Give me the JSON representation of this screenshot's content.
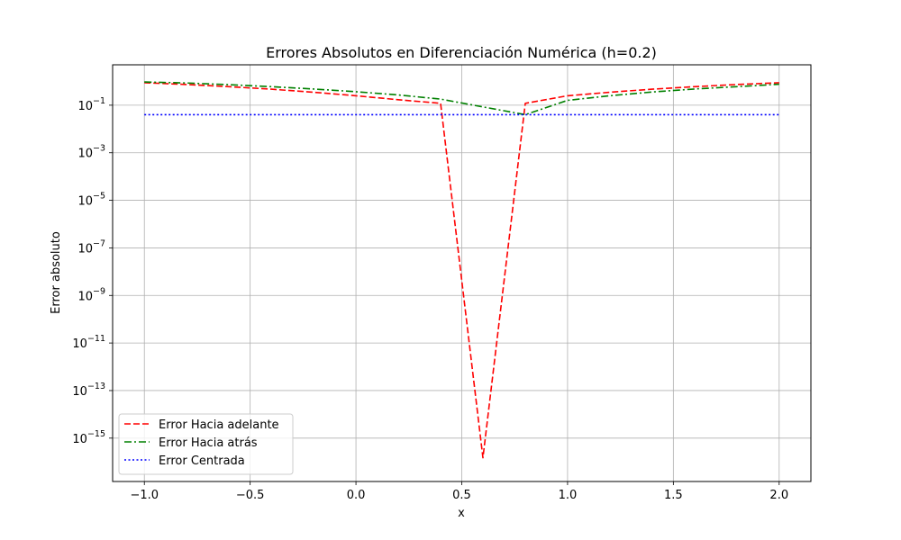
{
  "chart_data": {
    "type": "line",
    "title": "Errores Absolutos en Diferenciación Numérica (h=0.2)",
    "xlabel": "x",
    "ylabel": "Error absoluto",
    "xscale": "linear",
    "yscale": "log",
    "xlim": [
      -1.15,
      2.15
    ],
    "ylim": [
      1.5e-17,
      5
    ],
    "x_ticks": [
      -1.0,
      -0.5,
      0.0,
      0.5,
      1.0,
      1.5,
      2.0
    ],
    "x_tick_labels": [
      "−1.0",
      "−0.5",
      "0.0",
      "0.5",
      "1.0",
      "1.5",
      "2.0"
    ],
    "y_tick_exponents": [
      -1,
      -3,
      -5,
      -7,
      -9,
      -11,
      -13,
      -15
    ],
    "y_tick_base": "10",
    "y_tick_labels": [
      "10^-1",
      "10^-3",
      "10^-5",
      "10^-7",
      "10^-9",
      "10^-11",
      "10^-13",
      "10^-15"
    ],
    "grid": true,
    "legend_position": "lower-left",
    "series": [
      {
        "name": "Error Hacia adelante",
        "color": "#ff0000",
        "dash": "dashed",
        "x": [
          -1.0,
          -0.8,
          -0.6,
          -0.4,
          -0.2,
          0.0,
          0.2,
          0.4,
          0.6,
          0.8,
          1.0,
          1.2,
          1.4,
          1.6,
          1.8,
          2.0
        ],
        "y": [
          0.88,
          0.74,
          0.6,
          0.47,
          0.35,
          0.25,
          0.17,
          0.12,
          1.5e-16,
          0.12,
          0.25,
          0.35,
          0.47,
          0.6,
          0.74,
          0.88
        ]
      },
      {
        "name": "Error Hacia atrás",
        "color": "#008000",
        "dash": "dashdot",
        "x": [
          -1.0,
          -0.8,
          -0.6,
          -0.4,
          -0.2,
          0.0,
          0.2,
          0.4,
          0.6,
          0.8,
          1.0,
          1.2,
          1.4,
          1.6,
          1.8,
          2.0
        ],
        "y": [
          0.95,
          0.86,
          0.73,
          0.6,
          0.48,
          0.37,
          0.27,
          0.18,
          0.085,
          0.04,
          0.16,
          0.25,
          0.36,
          0.48,
          0.6,
          0.76
        ]
      },
      {
        "name": "Error Centrada",
        "color": "#0000ff",
        "dash": "dotted",
        "x": [
          -1.0,
          2.0
        ],
        "y": [
          0.04,
          0.04
        ]
      }
    ]
  }
}
